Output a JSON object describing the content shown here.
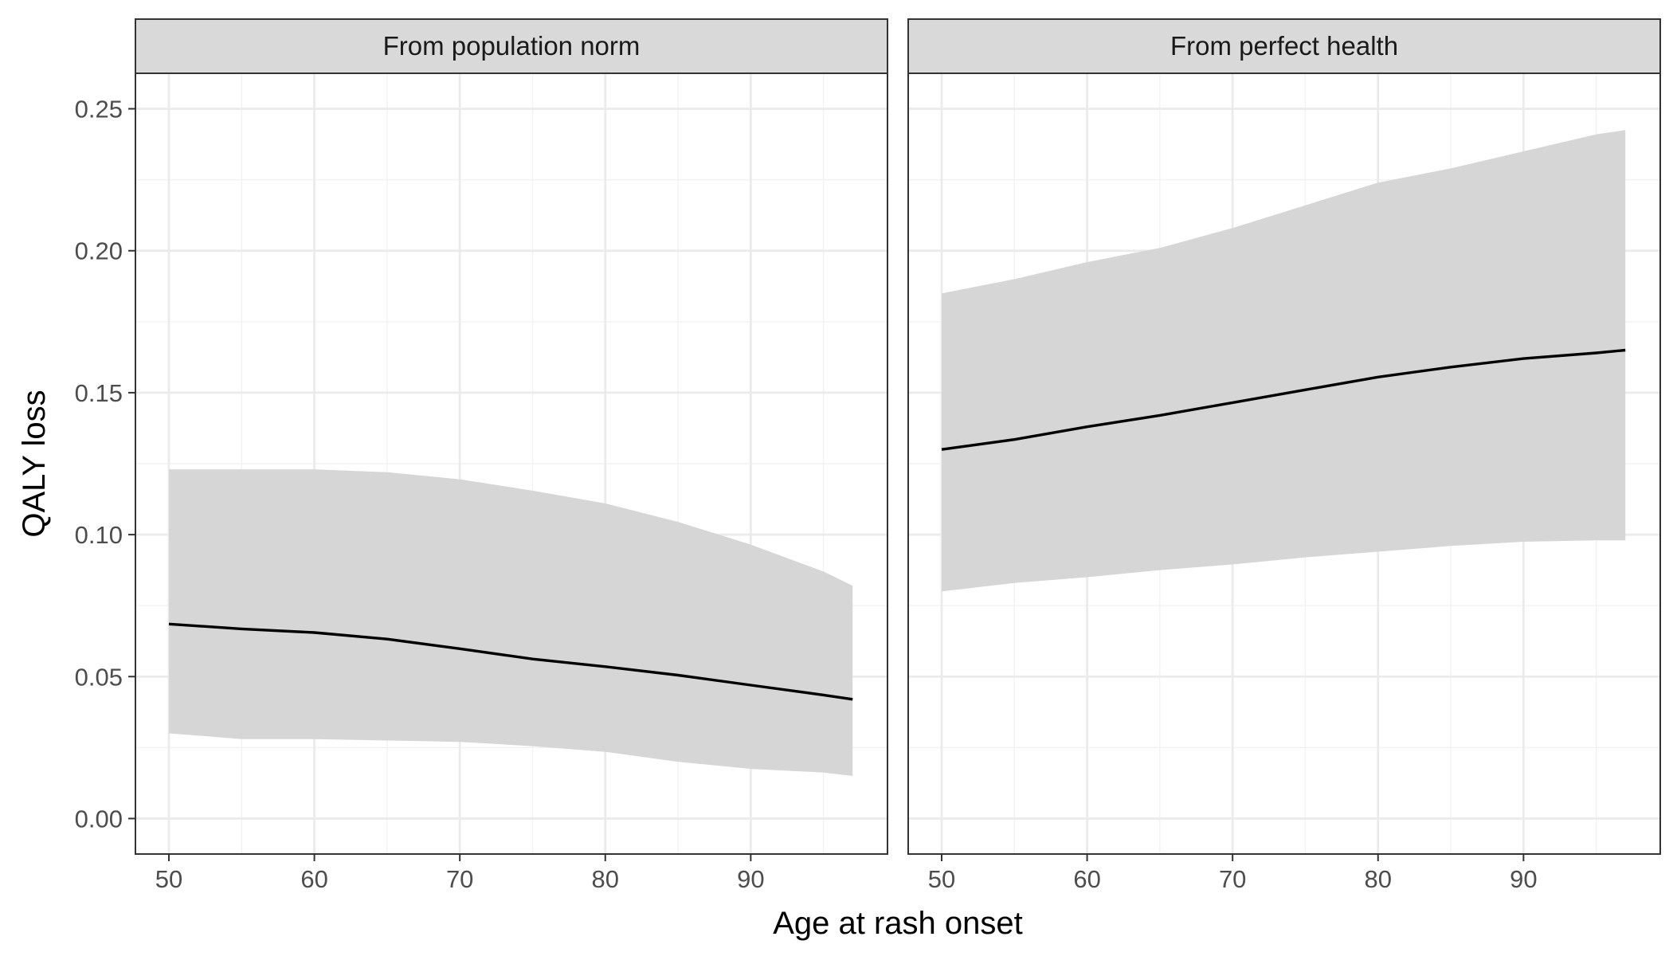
{
  "chart_data": {
    "type": "line",
    "xlabel": "Age at rash onset",
    "ylabel": "QALY loss",
    "xlim": [
      47.7,
      99.4
    ],
    "ylim": [
      -0.0125,
      0.2625
    ],
    "x_ticks": [
      50,
      60,
      70,
      80,
      90
    ],
    "x_tick_labels": [
      "50",
      "60",
      "70",
      "80",
      "90"
    ],
    "y_ticks": [
      0.0,
      0.05,
      0.1,
      0.15,
      0.2,
      0.25
    ],
    "y_tick_labels": [
      "0.00",
      "0.05",
      "0.10",
      "0.15",
      "0.20",
      "0.25"
    ],
    "grid": true,
    "legend": "none",
    "colors": {
      "line": "#000000",
      "ribbon": "#d6d6d6",
      "strip": "#d9d9d9",
      "border": "#333333",
      "grid_major": "#ebebeb",
      "grid_minor": "#f2f2f2"
    },
    "panels": [
      {
        "strip": "From population norm",
        "x": [
          50,
          55,
          60,
          65,
          70,
          75,
          80,
          85,
          90,
          95,
          97
        ],
        "y": [
          0.0685,
          0.0668,
          0.0655,
          0.0632,
          0.0598,
          0.0562,
          0.0535,
          0.0505,
          0.047,
          0.0435,
          0.042
        ],
        "y_lower": [
          0.03,
          0.028,
          0.028,
          0.0275,
          0.027,
          0.0255,
          0.0235,
          0.02,
          0.0175,
          0.0162,
          0.015
        ],
        "y_upper": [
          0.123,
          0.123,
          0.123,
          0.122,
          0.1195,
          0.1155,
          0.111,
          0.1045,
          0.0965,
          0.087,
          0.082
        ]
      },
      {
        "strip": "From perfect health",
        "x": [
          50,
          55,
          60,
          65,
          70,
          75,
          80,
          85,
          90,
          95,
          97
        ],
        "y": [
          0.13,
          0.1335,
          0.138,
          0.142,
          0.1465,
          0.151,
          0.1555,
          0.159,
          0.162,
          0.164,
          0.165
        ],
        "y_lower": [
          0.08,
          0.083,
          0.085,
          0.0875,
          0.0895,
          0.092,
          0.094,
          0.096,
          0.0975,
          0.098,
          0.098
        ],
        "y_upper": [
          0.185,
          0.19,
          0.196,
          0.201,
          0.208,
          0.216,
          0.224,
          0.229,
          0.235,
          0.241,
          0.2425
        ]
      }
    ]
  }
}
